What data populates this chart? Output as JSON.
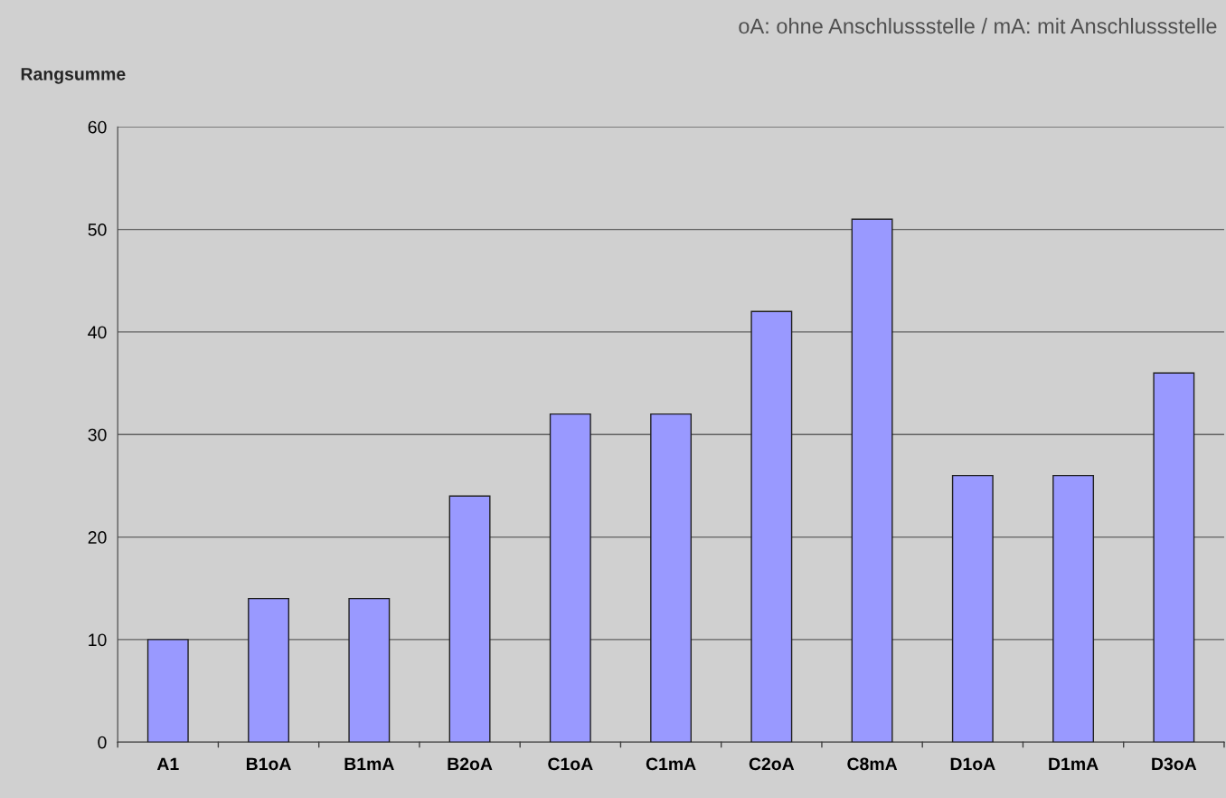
{
  "chart_data": {
    "type": "bar",
    "ylabel": "Rangsumme",
    "annotations": [
      "oA: ohne Anschlussstelle / mA: mit Anschlussstelle"
    ],
    "categories": [
      "A1",
      "B1oA",
      "B1mA",
      "B2oA",
      "C1oA",
      "C1mA",
      "C2oA",
      "C8mA",
      "D1oA",
      "D1mA",
      "D3oA"
    ],
    "values": [
      10,
      14,
      14,
      24,
      32,
      32,
      42,
      51,
      26,
      26,
      36
    ],
    "color": "#9999ff",
    "ylim": [
      0,
      60
    ],
    "yticks": [
      0,
      10,
      20,
      30,
      40,
      50,
      60
    ],
    "grid": "y",
    "legend": false
  }
}
